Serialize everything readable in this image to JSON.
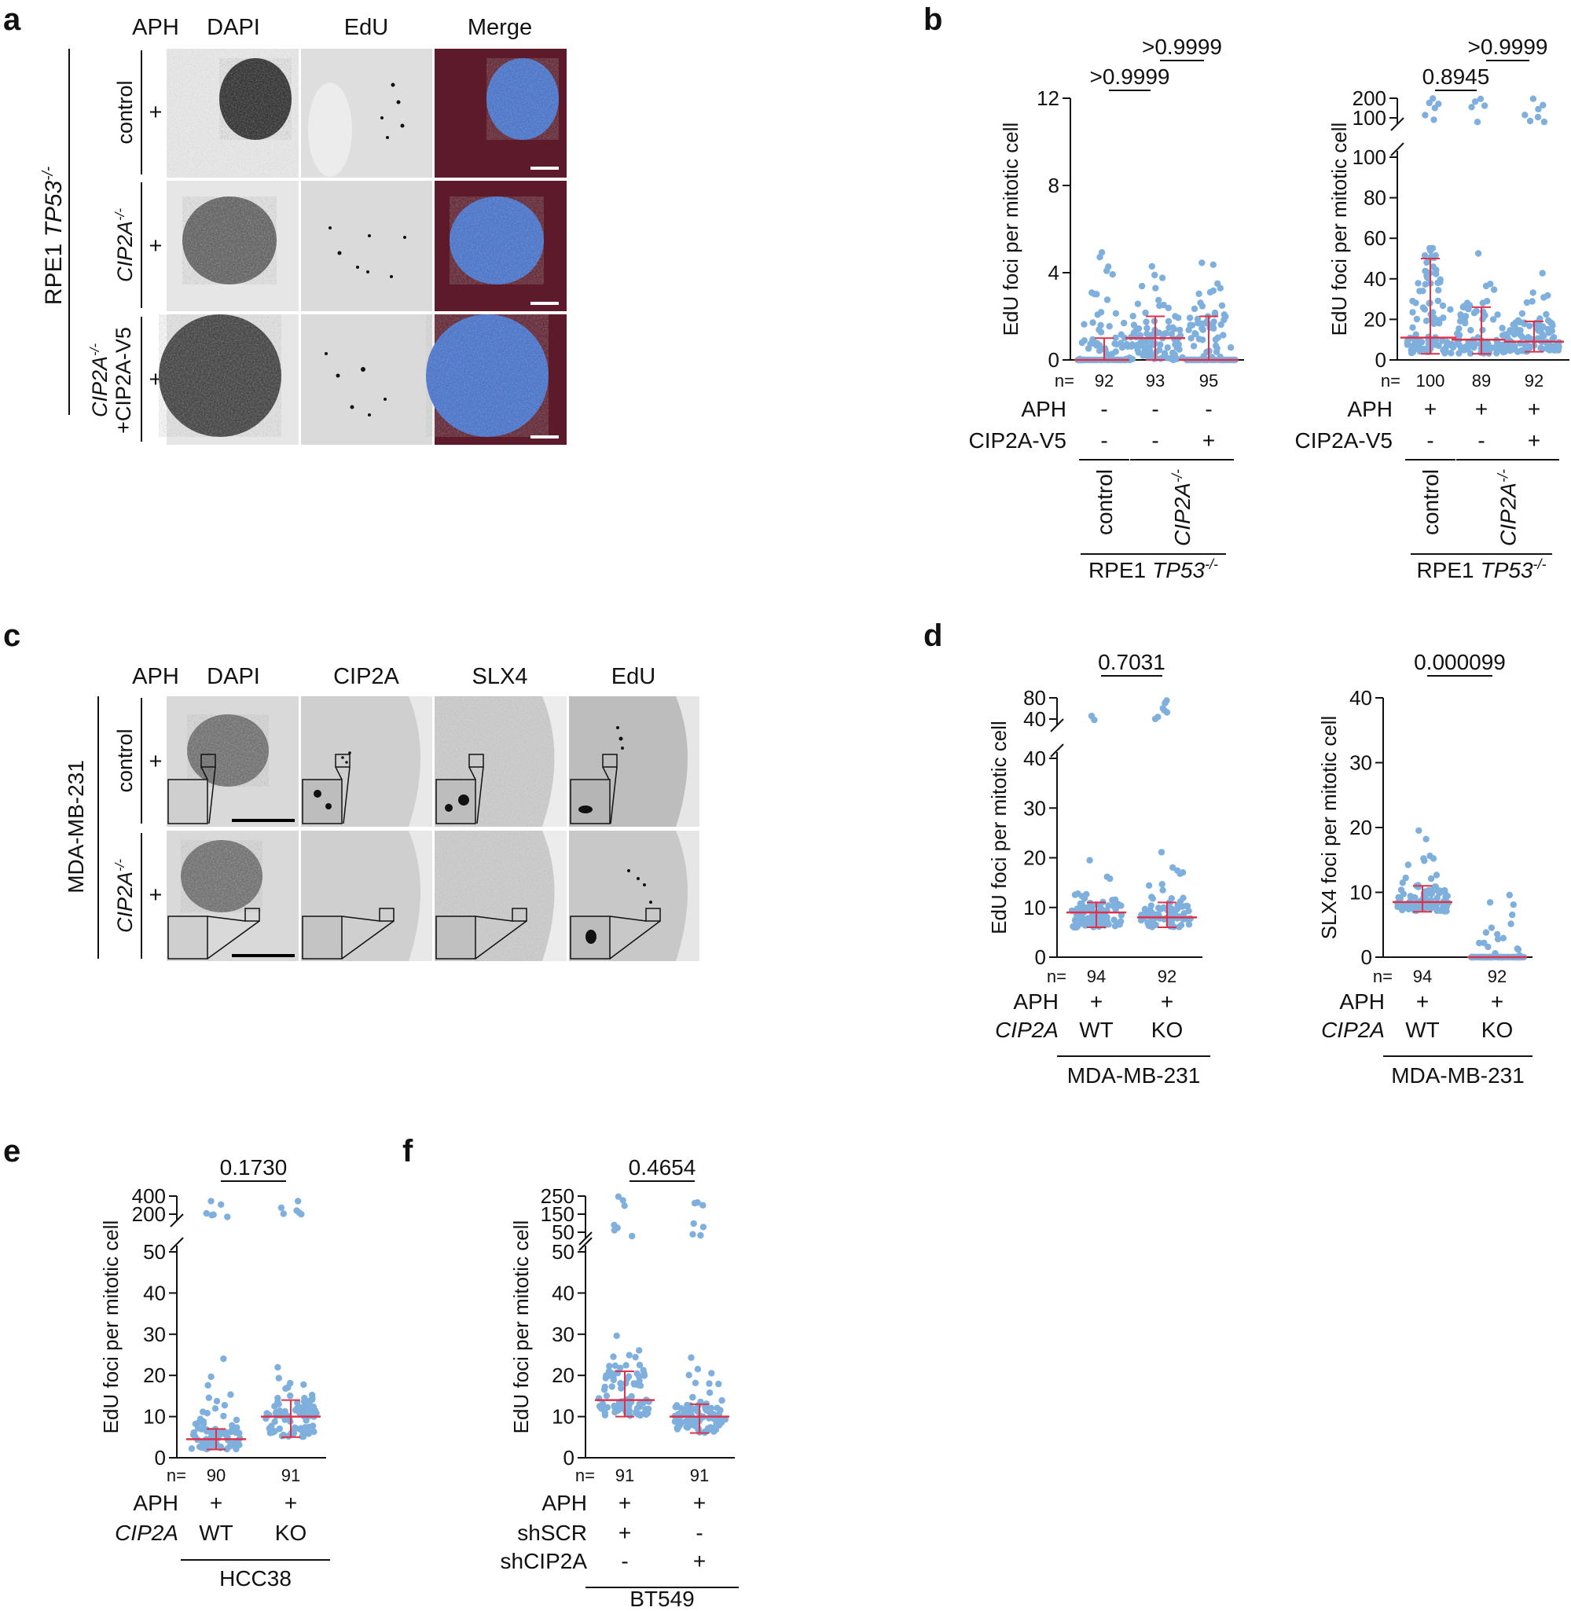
{
  "colors": {
    "dot": "#7fb0dd",
    "median": "#e0304a",
    "axis": "#111111",
    "panel_bg": "#e6e6e6",
    "merge_bg": "#5c1a2a",
    "merge_nucleus": "#3f6fd0"
  },
  "panel_labels": {
    "a": "a",
    "b": "b",
    "c": "c",
    "d": "d",
    "e": "e",
    "f": "f"
  },
  "panel_a": {
    "col_headers": [
      "APH",
      "DAPI",
      "EdU",
      "Merge"
    ],
    "cell_line": "RPE1",
    "cell_line_gene": "TP53",
    "cell_line_sup": "-/-",
    "rows": [
      {
        "label": "control",
        "aph": "+"
      },
      {
        "label": "CIP2A",
        "label_sup": "-/-",
        "aph": "+"
      },
      {
        "label": "CIP2A",
        "label_sup": "-/-",
        "label_line2": "+CIP2A-V5",
        "aph": "+"
      }
    ]
  },
  "panel_c": {
    "col_headers": [
      "APH",
      "DAPI",
      "CIP2A",
      "SLX4",
      "EdU"
    ],
    "cell_line": "MDA-MB-231",
    "rows": [
      {
        "label": "control",
        "aph": "+"
      },
      {
        "label": "CIP2A",
        "label_sup": "-/-",
        "aph": "+"
      }
    ]
  },
  "chart_data": [
    {
      "id": "b-left",
      "type": "scatter",
      "ylabel": "EdU foci per mitotic cell",
      "ylim": [
        0,
        12
      ],
      "yticks": [
        "0",
        "4",
        "8",
        "12"
      ],
      "groups": [
        {
          "n": "92",
          "median": 0,
          "q1": 0,
          "q3": 1,
          "aph": "-",
          "cip2a_v5": "-"
        },
        {
          "n": "93",
          "median": 1,
          "q1": 0,
          "q3": 2,
          "aph": "-",
          "cip2a_v5": "-"
        },
        {
          "n": "95",
          "median": 0,
          "q1": 0,
          "q3": 2,
          "aph": "-",
          "cip2a_v5": "+"
        }
      ],
      "comparisons": [
        {
          "label": ">0.9999",
          "from": 0,
          "to": 1
        },
        {
          "label": ">0.9999",
          "from": 1,
          "to": 2
        }
      ],
      "n_prefix": "n=",
      "rows": [
        "APH",
        "CIP2A-V5"
      ],
      "genotypes": [
        "control",
        "CIP2A"
      ],
      "genotype_sup": "-/-",
      "cell_line": "RPE1",
      "cell_line_gene": "TP53",
      "cell_line_sup": "-/-"
    },
    {
      "id": "b-right",
      "type": "scatter",
      "ylabel": "EdU foci per mitotic cell",
      "ylim": [
        0,
        100
      ],
      "yticks": [
        "0",
        "20",
        "40",
        "60",
        "80",
        "100"
      ],
      "break_ticks": [
        "100",
        "200"
      ],
      "groups": [
        {
          "n": "100",
          "median": 11,
          "q1": 3,
          "q3": 50,
          "aph": "+",
          "cip2a_v5": "-"
        },
        {
          "n": "89",
          "median": 10,
          "q1": 3,
          "q3": 26,
          "aph": "+",
          "cip2a_v5": "-"
        },
        {
          "n": "92",
          "median": 9,
          "q1": 4,
          "q3": 19,
          "aph": "+",
          "cip2a_v5": "+"
        }
      ],
      "comparisons": [
        {
          "label": "0.8945",
          "from": 0,
          "to": 1
        },
        {
          "label": ">0.9999",
          "from": 1,
          "to": 2
        }
      ],
      "n_prefix": "n=",
      "rows": [
        "APH",
        "CIP2A-V5"
      ],
      "genotypes": [
        "control",
        "CIP2A"
      ],
      "genotype_sup": "-/-",
      "cell_line": "RPE1",
      "cell_line_gene": "TP53",
      "cell_line_sup": "-/-"
    },
    {
      "id": "d-left",
      "type": "scatter",
      "ylabel": "EdU foci per mitotic cell",
      "ylim": [
        0,
        40
      ],
      "yticks": [
        "0",
        "10",
        "20",
        "30",
        "40"
      ],
      "break_ticks": [
        "40",
        "80"
      ],
      "groups": [
        {
          "n": "94",
          "median": 9,
          "q1": 6,
          "q3": 11,
          "aph": "+",
          "cip2a": "WT"
        },
        {
          "n": "92",
          "median": 8,
          "q1": 6,
          "q3": 11,
          "aph": "+",
          "cip2a": "KO"
        }
      ],
      "comparisons": [
        {
          "label": "0.7031",
          "from": 0,
          "to": 1
        }
      ],
      "n_prefix": "n=",
      "rows": [
        "APH",
        "CIP2A"
      ],
      "cell_line": "MDA-MB-231"
    },
    {
      "id": "d-right",
      "type": "scatter",
      "ylabel": "SLX4 foci per mitotic cell",
      "ylim": [
        0,
        40
      ],
      "yticks": [
        "0",
        "10",
        "20",
        "30",
        "40"
      ],
      "groups": [
        {
          "n": "94",
          "median": 8.5,
          "q1": 7,
          "q3": 11,
          "aph": "+",
          "cip2a": "WT"
        },
        {
          "n": "92",
          "median": 0,
          "q1": 0,
          "q3": 0,
          "aph": "+",
          "cip2a": "KO"
        }
      ],
      "comparisons": [
        {
          "label": "0.000099",
          "from": 0,
          "to": 1
        }
      ],
      "n_prefix": "n=",
      "rows": [
        "APH",
        "CIP2A"
      ],
      "cell_line": "MDA-MB-231"
    },
    {
      "id": "e",
      "type": "scatter",
      "ylabel": "EdU foci per mitotic cell",
      "ylim": [
        0,
        50
      ],
      "yticks": [
        "0",
        "10",
        "20",
        "30",
        "40",
        "50"
      ],
      "break_ticks": [
        "200",
        "400"
      ],
      "groups": [
        {
          "n": "90",
          "median": 4.5,
          "q1": 2,
          "q3": 7,
          "aph": "+",
          "cip2a": "WT"
        },
        {
          "n": "91",
          "median": 10,
          "q1": 5,
          "q3": 14,
          "aph": "+",
          "cip2a": "KO"
        }
      ],
      "comparisons": [
        {
          "label": "0.1730",
          "from": 0,
          "to": 1
        }
      ],
      "n_prefix": "n=",
      "rows": [
        "APH",
        "CIP2A"
      ],
      "cell_line": "HCC38"
    },
    {
      "id": "f",
      "type": "scatter",
      "ylabel": "EdU foci per mitotic cell",
      "ylim": [
        0,
        50
      ],
      "yticks": [
        "0",
        "10",
        "20",
        "30",
        "40",
        "50"
      ],
      "break_ticks": [
        "50",
        "150",
        "250"
      ],
      "groups": [
        {
          "n": "91",
          "median": 14,
          "q1": 10,
          "q3": 21,
          "aph": "+",
          "shscr": "+",
          "shcip2a": "-"
        },
        {
          "n": "91",
          "median": 10,
          "q1": 6,
          "q3": 13,
          "aph": "+",
          "shscr": "-",
          "shcip2a": "+"
        }
      ],
      "comparisons": [
        {
          "label": "0.4654",
          "from": 0,
          "to": 1
        }
      ],
      "n_prefix": "n=",
      "rows": [
        "APH",
        "shSCR",
        "shCIP2A"
      ],
      "cell_line": "BT549"
    }
  ]
}
